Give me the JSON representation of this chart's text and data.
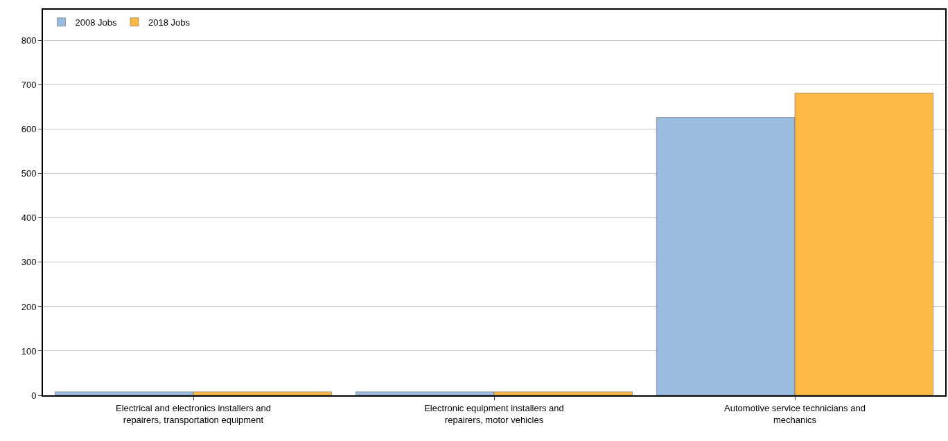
{
  "chart_data": {
    "type": "bar",
    "categories": [
      "Electrical and electronics installers and\nrepairers, transportation equipment",
      "Electronic equipment installers and\nrepairers, motor vehicles",
      "Automotive service technicians and\nmechanics"
    ],
    "series": [
      {
        "name": "2008 Jobs",
        "color": "#9bbbdf",
        "values": [
          8,
          8,
          627
        ]
      },
      {
        "name": "2018 Jobs",
        "color": "#fdb944",
        "values": [
          8,
          8,
          682
        ]
      }
    ],
    "ylim": [
      0,
      870
    ],
    "yticks": [
      0,
      100,
      200,
      300,
      400,
      500,
      600,
      700,
      800
    ],
    "grid": "y",
    "legend": "top left"
  }
}
